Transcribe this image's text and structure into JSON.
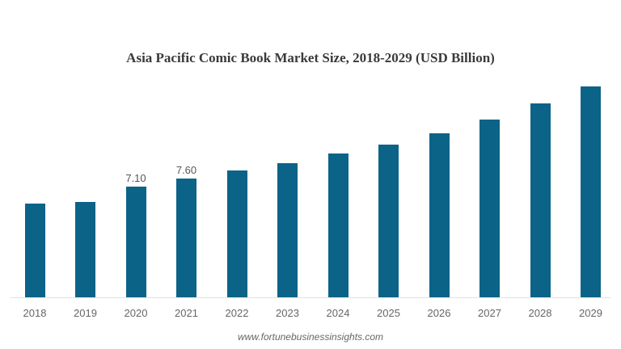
{
  "chart_data": {
    "type": "bar",
    "title": "Asia Pacific Comic Book Market Size, 2018-2029 (USD Billion)",
    "xlabel": "",
    "ylabel": "",
    "categories": [
      "2018",
      "2019",
      "2020",
      "2021",
      "2022",
      "2023",
      "2024",
      "2025",
      "2026",
      "2027",
      "2028",
      "2029"
    ],
    "values": [
      6.0,
      6.11,
      7.1,
      7.6,
      8.12,
      8.59,
      9.21,
      9.78,
      10.5,
      11.38,
      12.42,
      13.5
    ],
    "data_labels": {
      "2020": "7.10",
      "2021": "7.60"
    },
    "ylim": [
      0,
      14.9
    ],
    "grid": false,
    "legend": null,
    "bar_color": "#0b6388",
    "source": "www.fortunebusinessinsights.com"
  },
  "header": {
    "title": "Asia Pacific Comic Book Market Size, 2018-2029 (USD Billion)"
  },
  "footer": {
    "source": "www.fortunebusinessinsights.com"
  }
}
